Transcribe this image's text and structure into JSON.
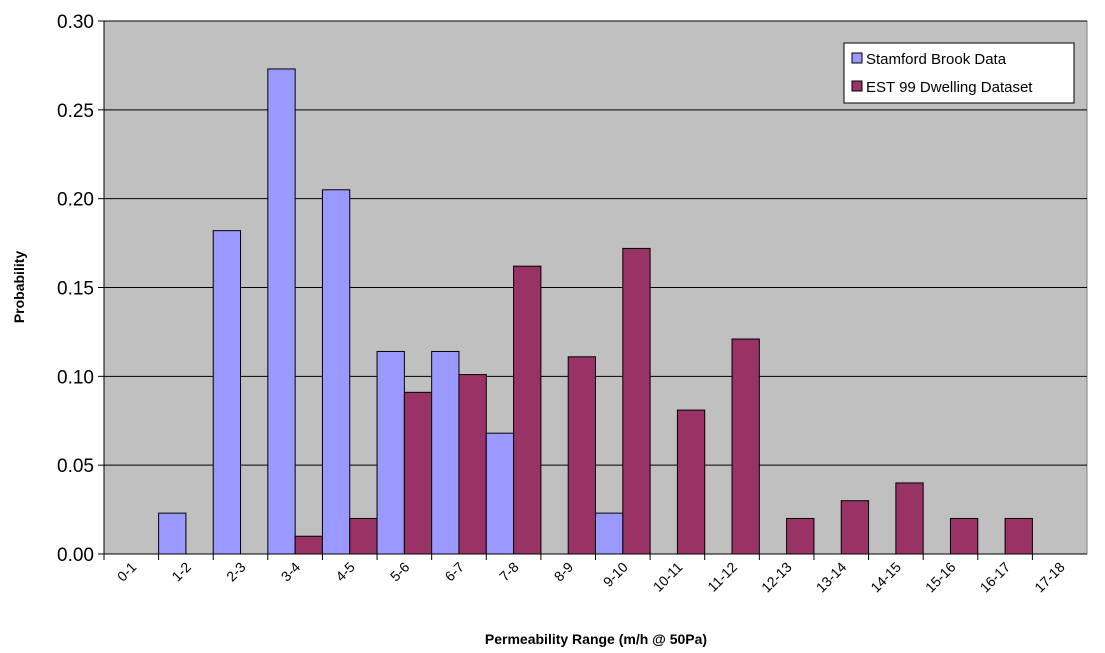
{
  "chart_data": {
    "type": "bar",
    "title": "",
    "xlabel": "Permeability Range (m/h @ 50Pa)",
    "ylabel": "Probability",
    "ylim": [
      0,
      0.3
    ],
    "yticks": [
      "0.00",
      "0.05",
      "0.10",
      "0.15",
      "0.20",
      "0.25",
      "0.30"
    ],
    "grid": true,
    "legend_position": "top-right",
    "categories": [
      "0-1",
      "1-2",
      "2-3",
      "3-4",
      "4-5",
      "5-6",
      "6-7",
      "7-8",
      "8-9",
      "9-10",
      "10-11",
      "11-12",
      "12-13",
      "13-14",
      "14-15",
      "15-16",
      "16-17",
      "17-18"
    ],
    "series": [
      {
        "name": "Stamford Brook Data",
        "color": "#9999FF",
        "values": [
          0,
          0.023,
          0.182,
          0.273,
          0.205,
          0.114,
          0.114,
          0.068,
          0,
          0.023,
          0,
          0,
          0,
          0,
          0,
          0,
          0,
          0
        ]
      },
      {
        "name": "EST 99 Dwelling Dataset",
        "color": "#993366",
        "values": [
          0,
          0,
          0,
          0.01,
          0.02,
          0.091,
          0.101,
          0.162,
          0.111,
          0.172,
          0.081,
          0.121,
          0.02,
          0.03,
          0.04,
          0.02,
          0.02,
          0
        ]
      }
    ],
    "plot_background": "#C0C0C0"
  }
}
